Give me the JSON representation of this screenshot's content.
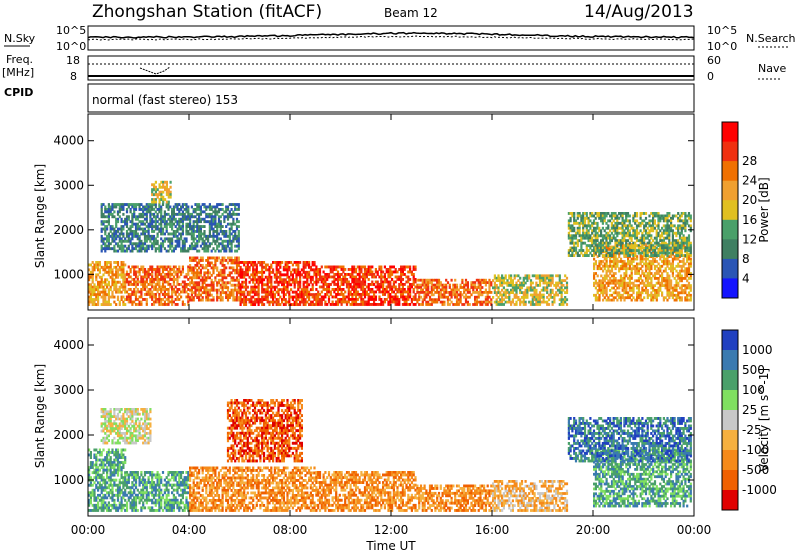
{
  "header": {
    "station": "Zhongshan Station (fitACF)",
    "beam": "Beam 12",
    "date": "14/Aug/2013"
  },
  "top_panels": {
    "nsky_label": "N.Sky",
    "nsearch_label": "N.Search",
    "nsky_ticks": [
      "10^5",
      "10^0"
    ],
    "nsearch_ticks": [
      "10^5",
      "10^0"
    ],
    "freq_label_line1": "Freq.",
    "freq_label_line2": "[MHz]",
    "freq_ticks": [
      "18",
      "8"
    ],
    "nave_label": "Nave",
    "nave_ticks": [
      "60",
      "0"
    ],
    "cpid_label": "CPID",
    "cpid_value": "normal (fast stereo) 153"
  },
  "colors": {
    "power_scale": [
      "#1414ff",
      "#2a55b5",
      "#3f7f62",
      "#4aa06a",
      "#e0c020",
      "#f0a030",
      "#f07000",
      "#f03010",
      "#ff0000"
    ],
    "velocity_scale": [
      "#e00000",
      "#f06000",
      "#f58a1a",
      "#f5b040",
      "#c8c8c8",
      "#80e060",
      "#4aa06a",
      "#3a7ab0",
      "#2040c0"
    ]
  },
  "chart_data": [
    {
      "type": "heatmap",
      "title": "",
      "xlabel": "Time UT",
      "ylabel": "Slant Range [km]",
      "xlim": [
        "00:00",
        "24:00"
      ],
      "ylim": [
        200,
        4600
      ],
      "x_ticks": [
        "00:00",
        "04:00",
        "08:00",
        "12:00",
        "16:00",
        "20:00",
        "00:00"
      ],
      "y_ticks": [
        "1000",
        "2000",
        "3000",
        "4000"
      ],
      "colorbar_label": "Power [dB]",
      "colorbar_ticks": [
        "4",
        "8",
        "12",
        "16",
        "20",
        "24",
        "28"
      ],
      "colorbar_range": [
        0,
        30
      ],
      "series": [
        {
          "t0": 0.0,
          "t1": 1.5,
          "r0": 300,
          "r1": 1300,
          "level": 20
        },
        {
          "t0": 1.5,
          "t1": 4.0,
          "r0": 300,
          "r1": 1200,
          "level": 24
        },
        {
          "t0": 4.0,
          "t1": 6.0,
          "r0": 400,
          "r1": 1400,
          "level": 22
        },
        {
          "t0": 6.0,
          "t1": 9.0,
          "r0": 300,
          "r1": 1300,
          "level": 26
        },
        {
          "t0": 9.0,
          "t1": 13.0,
          "r0": 300,
          "r1": 1200,
          "level": 27
        },
        {
          "t0": 13.0,
          "t1": 16.0,
          "r0": 300,
          "r1": 900,
          "level": 24
        },
        {
          "t0": 16.0,
          "t1": 19.0,
          "r0": 300,
          "r1": 1000,
          "level": 16
        },
        {
          "t0": 20.0,
          "t1": 23.9,
          "r0": 400,
          "r1": 1700,
          "level": 20
        },
        {
          "t0": 0.5,
          "t1": 6.0,
          "r0": 1500,
          "r1": 2600,
          "level": 8
        },
        {
          "t0": 2.5,
          "t1": 3.3,
          "r0": 2600,
          "r1": 3100,
          "level": 16
        },
        {
          "t0": 19.0,
          "t1": 23.9,
          "r0": 1400,
          "r1": 2400,
          "level": 10
        }
      ]
    },
    {
      "type": "heatmap",
      "title": "",
      "xlabel": "Time UT",
      "ylabel": "Slant Range [km]",
      "xlim": [
        "00:00",
        "24:00"
      ],
      "ylim": [
        200,
        4600
      ],
      "x_ticks": [
        "00:00",
        "04:00",
        "08:00",
        "12:00",
        "16:00",
        "20:00",
        "00:00"
      ],
      "y_ticks": [
        "1000",
        "2000",
        "3000",
        "4000"
      ],
      "colorbar_label": "Velocity [m s^-1]",
      "colorbar_ticks": [
        "1000",
        "500",
        "100",
        "25",
        "-25",
        "-100",
        "-500",
        "-1000"
      ],
      "colorbar_range": [
        -1000,
        1000
      ],
      "series": [
        {
          "t0": 0.0,
          "t1": 1.5,
          "r0": 300,
          "r1": 1700,
          "level": 100
        },
        {
          "t0": 1.5,
          "t1": 4.0,
          "r0": 300,
          "r1": 1200,
          "level": 100
        },
        {
          "t0": 4.0,
          "t1": 9.0,
          "r0": 300,
          "r1": 1300,
          "level": -100
        },
        {
          "t0": 9.0,
          "t1": 13.0,
          "r0": 300,
          "r1": 1200,
          "level": -200
        },
        {
          "t0": 13.0,
          "t1": 16.0,
          "r0": 300,
          "r1": 900,
          "level": -150
        },
        {
          "t0": 16.0,
          "t1": 19.0,
          "r0": 300,
          "r1": 1000,
          "level": -50
        },
        {
          "t0": 20.0,
          "t1": 23.9,
          "r0": 400,
          "r1": 1700,
          "level": 300
        },
        {
          "t0": 0.5,
          "t1": 2.5,
          "r0": 1800,
          "r1": 2600,
          "level": 0
        },
        {
          "t0": 5.5,
          "t1": 8.5,
          "r0": 1400,
          "r1": 2800,
          "level": -300
        },
        {
          "t0": 19.0,
          "t1": 23.9,
          "r0": 1400,
          "r1": 2400,
          "level": 500
        }
      ]
    }
  ]
}
